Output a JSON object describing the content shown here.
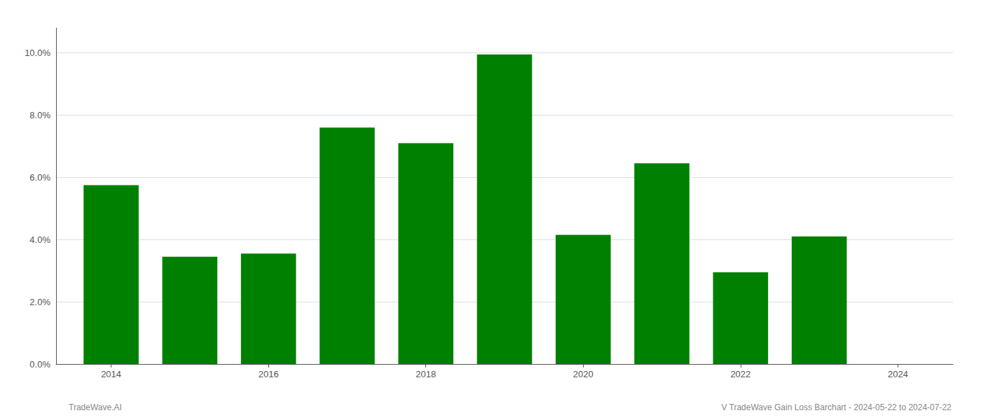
{
  "chart_data": {
    "type": "bar",
    "x": [
      2014,
      2015,
      2016,
      2017,
      2018,
      2019,
      2020,
      2021,
      2022,
      2023
    ],
    "values": [
      0.0575,
      0.0345,
      0.0355,
      0.076,
      0.071,
      0.0995,
      0.0415,
      0.0645,
      0.0295,
      0.041
    ],
    "color": "#008000",
    "xlim": [
      2013.3,
      2024.7
    ],
    "xticks": [
      2014,
      2016,
      2018,
      2020,
      2022,
      2024
    ],
    "ylim": [
      0,
      0.108
    ],
    "yticks": [
      {
        "value": 0.0,
        "label": "0.0%"
      },
      {
        "value": 0.02,
        "label": "2.0%"
      },
      {
        "value": 0.04,
        "label": "4.0%"
      },
      {
        "value": 0.06,
        "label": "6.0%"
      },
      {
        "value": 0.08,
        "label": "8.0%"
      },
      {
        "value": 0.1,
        "label": "10.0%"
      }
    ],
    "grid": true,
    "annotations": [
      "TradeWave.AI",
      "V TradeWave Gain Loss Barchart - 2024-05-22 to 2024-07-22"
    ]
  }
}
